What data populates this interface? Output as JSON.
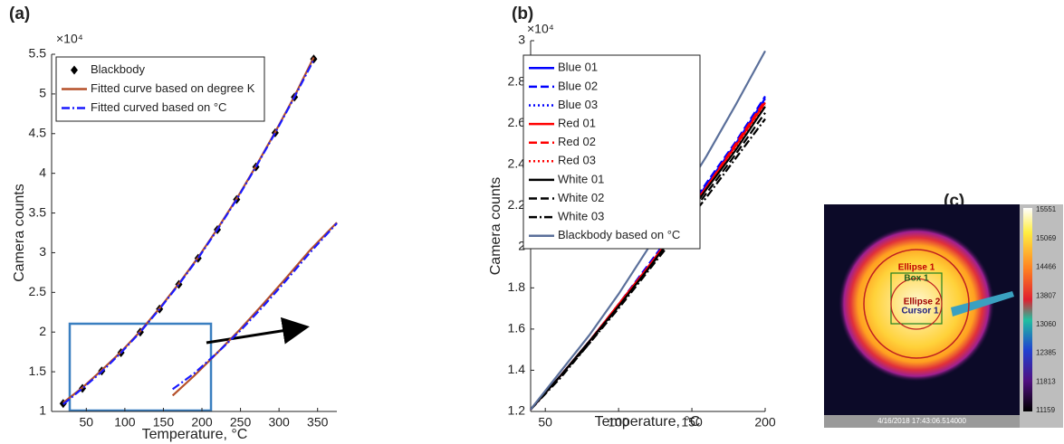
{
  "panel_labels": [
    "(a)",
    "(b)",
    "(c)"
  ],
  "chart_data": [
    {
      "type": "line",
      "xlabel": "Temperature, °C",
      "ylabel": "Camera counts",
      "y_multiplier": "×10⁴",
      "xlim": [
        5,
        375
      ],
      "xticks": [
        50,
        100,
        150,
        200,
        250,
        300,
        350
      ],
      "ylim": [
        1,
        5.5
      ],
      "yticks": [
        1,
        1.5,
        2,
        2.5,
        3,
        3.5,
        4,
        4.5,
        5,
        5.5
      ],
      "legend": "upper left",
      "x": [
        20,
        45,
        70,
        95,
        120,
        145,
        170,
        195,
        220,
        245,
        270,
        295,
        320,
        345
      ],
      "series": [
        {
          "name": "Blackbody",
          "color": "#000000",
          "marker": "diamond",
          "linestyle": "none",
          "values": [
            1.1,
            1.29,
            1.51,
            1.74,
            2.0,
            2.29,
            2.6,
            2.93,
            3.29,
            3.67,
            4.08,
            4.51,
            4.96,
            5.44
          ]
        },
        {
          "name": "Fitted curve based on degree K",
          "color": "#b5502a",
          "linestyle": "solid",
          "values": [
            1.11,
            1.3,
            1.52,
            1.75,
            2.01,
            2.3,
            2.61,
            2.94,
            3.3,
            3.68,
            4.09,
            4.52,
            4.97,
            5.46
          ]
        },
        {
          "name": "Fitted curved based on °C",
          "color": "#1a1aff",
          "linestyle": "dashdot",
          "values": [
            1.09,
            1.29,
            1.5,
            1.74,
            2.0,
            2.29,
            2.6,
            2.93,
            3.29,
            3.67,
            4.08,
            4.51,
            4.96,
            5.43
          ]
        }
      ],
      "inset": {
        "x": [
          162,
          190,
          220,
          250,
          280,
          310,
          340,
          375
        ],
        "series": [
          {
            "color": "#b5502a",
            "linestyle": "solid",
            "values": [
              1.2,
              1.45,
              1.74,
              2.04,
              2.36,
              2.69,
              3.03,
              3.38
            ]
          },
          {
            "color": "#1a1aff",
            "linestyle": "dashdot",
            "values": [
              1.28,
              1.48,
              1.74,
              2.02,
              2.33,
              2.66,
              3.0,
              3.37
            ]
          }
        ]
      }
    },
    {
      "type": "line",
      "xlabel": "Temperature, °C",
      "ylabel": "Camera counts",
      "y_multiplier": "×10⁴",
      "xlim": [
        40,
        200
      ],
      "xticks": [
        50,
        100,
        150,
        200
      ],
      "ylim": [
        1.2,
        3
      ],
      "yticks": [
        1.2,
        1.4,
        1.6,
        1.8,
        2,
        2.2,
        2.4,
        2.6,
        2.8,
        3
      ],
      "legend": "upper left",
      "x": [
        40,
        60,
        80,
        100,
        120,
        140,
        160,
        180,
        200
      ],
      "series": [
        {
          "name": "Blue 01",
          "color": "#0000ff",
          "linestyle": "solid",
          "values": [
            1.21,
            1.37,
            1.54,
            1.72,
            1.9,
            2.09,
            2.3,
            2.5,
            2.72
          ]
        },
        {
          "name": "Blue 02",
          "color": "#0000ff",
          "linestyle": "dashed",
          "values": [
            1.21,
            1.37,
            1.54,
            1.72,
            1.91,
            2.1,
            2.31,
            2.51,
            2.73
          ]
        },
        {
          "name": "Blue 03",
          "color": "#0000ff",
          "linestyle": "dotted",
          "values": [
            1.21,
            1.37,
            1.54,
            1.72,
            1.9,
            2.09,
            2.3,
            2.5,
            2.71
          ]
        },
        {
          "name": "Red 01",
          "color": "#ff0000",
          "linestyle": "solid",
          "values": [
            1.21,
            1.37,
            1.54,
            1.72,
            1.9,
            2.09,
            2.29,
            2.49,
            2.7
          ]
        },
        {
          "name": "Red 02",
          "color": "#ff0000",
          "linestyle": "dashed",
          "values": [
            1.21,
            1.37,
            1.54,
            1.72,
            1.9,
            2.09,
            2.29,
            2.5,
            2.71
          ]
        },
        {
          "name": "Red 03",
          "color": "#ff0000",
          "linestyle": "dotted",
          "values": [
            1.21,
            1.37,
            1.54,
            1.72,
            1.9,
            2.08,
            2.28,
            2.48,
            2.69
          ]
        },
        {
          "name": "White 01",
          "color": "#000000",
          "linestyle": "solid",
          "values": [
            1.21,
            1.37,
            1.54,
            1.71,
            1.89,
            2.08,
            2.28,
            2.47,
            2.68
          ]
        },
        {
          "name": "White 02",
          "color": "#000000",
          "linestyle": "dashed",
          "values": [
            1.21,
            1.37,
            1.53,
            1.71,
            1.89,
            2.07,
            2.26,
            2.45,
            2.65
          ]
        },
        {
          "name": "White 03",
          "color": "#000000",
          "linestyle": "dashdot",
          "values": [
            1.21,
            1.36,
            1.53,
            1.7,
            1.88,
            2.06,
            2.24,
            2.43,
            2.62
          ]
        },
        {
          "name": "Blackbody based on °C",
          "color": "#5a6f9a",
          "linestyle": "solid",
          "values": [
            1.21,
            1.39,
            1.57,
            1.77,
            1.99,
            2.21,
            2.44,
            2.69,
            2.95
          ]
        }
      ]
    }
  ],
  "thermal_image": {
    "annotations": [
      "Ellipse 1",
      "Box 1",
      "Ellipse 2",
      "Cursor 1"
    ],
    "colorbar_ticks": [
      15551,
      15069,
      14466,
      13807,
      13060,
      12385,
      11813,
      11159
    ],
    "timestamp": "4/16/2018 17:43:06.514000"
  }
}
